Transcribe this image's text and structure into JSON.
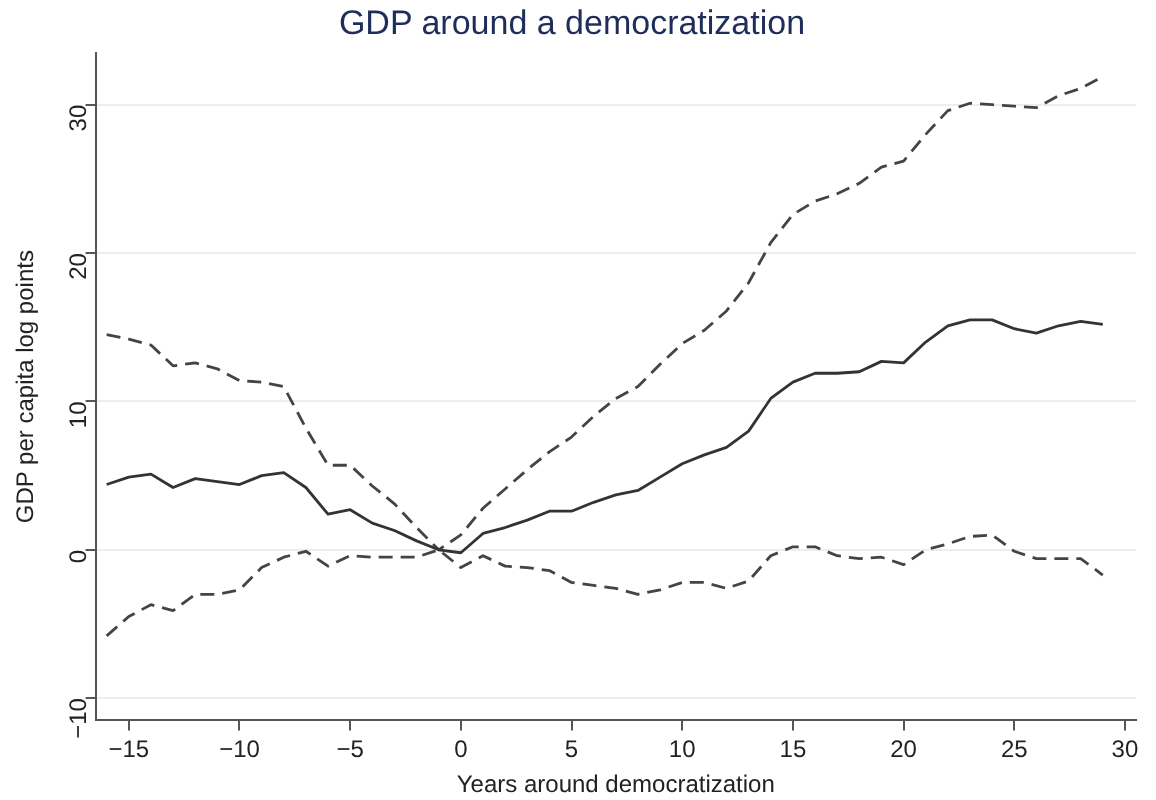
{
  "chart_data": {
    "type": "line",
    "title": "GDP around a democratization",
    "xlabel": "Years around democratization",
    "ylabel": "GDP per capita log points",
    "x": [
      -16,
      -15,
      -14,
      -13,
      -12,
      -11,
      -10,
      -9,
      -8,
      -7,
      -6,
      -5,
      -4,
      -3,
      -2,
      -1,
      0,
      1,
      2,
      3,
      4,
      5,
      6,
      7,
      8,
      9,
      10,
      11,
      12,
      13,
      14,
      15,
      16,
      17,
      18,
      19,
      20,
      21,
      22,
      23,
      24,
      25,
      26,
      27,
      28,
      29
    ],
    "series": [
      {
        "color": "#333333",
        "line_style": "solid",
        "values": [
          4.4,
          4.9,
          5.1,
          4.2,
          4.8,
          4.6,
          4.4,
          5.0,
          5.2,
          4.2,
          2.4,
          2.7,
          1.8,
          1.3,
          0.6,
          0,
          -0.2,
          1.1,
          1.5,
          2.0,
          2.6,
          2.6,
          3.2,
          3.7,
          4.0,
          4.9,
          5.8,
          6.4,
          6.9,
          8.0,
          10.2,
          11.3,
          11.9,
          11.9,
          12.0,
          12.7,
          12.6,
          14.0,
          15.1,
          15.5,
          15.5,
          14.9,
          14.6,
          15.1,
          15.4,
          15.2
        ]
      },
      {
        "color": "#444444",
        "line_style": "dashed",
        "values": [
          14.5,
          14.2,
          13.8,
          12.4,
          12.6,
          12.2,
          11.4,
          11.3,
          11.0,
          8.2,
          5.7,
          5.7,
          4.3,
          3.1,
          1.5,
          0,
          1.0,
          2.8,
          4.1,
          5.4,
          6.6,
          7.6,
          9.0,
          10.2,
          11.0,
          12.5,
          13.9,
          14.8,
          16.1,
          18.0,
          20.7,
          22.6,
          23.5,
          24.0,
          24.7,
          25.8,
          26.2,
          28.0,
          29.6,
          30.1,
          30.0,
          29.9,
          29.8,
          30.6,
          31.1,
          31.9
        ]
      },
      {
        "color": "#444444",
        "line_style": "dashed",
        "values": [
          -5.8,
          -4.5,
          -3.7,
          -4.1,
          -3.0,
          -3.0,
          -2.7,
          -1.2,
          -0.5,
          -0.1,
          -1.1,
          -0.4,
          -0.5,
          -0.5,
          -0.5,
          0,
          -1.2,
          -0.4,
          -1.1,
          -1.2,
          -1.4,
          -2.2,
          -2.4,
          -2.6,
          -3.0,
          -2.7,
          -2.2,
          -2.2,
          -2.6,
          -2.1,
          -0.4,
          0.2,
          0.2,
          -0.4,
          -0.6,
          -0.5,
          -1.0,
          0.0,
          0.4,
          0.9,
          1.0,
          -0.1,
          -0.6,
          -0.6,
          -0.6,
          -1.7
        ]
      }
    ],
    "xlim": [
      -16.5,
      30.5
    ],
    "xticks": [
      -15,
      -10,
      -5,
      0,
      5,
      10,
      15,
      20,
      25,
      30
    ],
    "ylim": [
      -11.5,
      33.5
    ],
    "yticks": [
      -10,
      0,
      10,
      20,
      30
    ],
    "grid": "y",
    "legend": false,
    "marker": "none"
  }
}
